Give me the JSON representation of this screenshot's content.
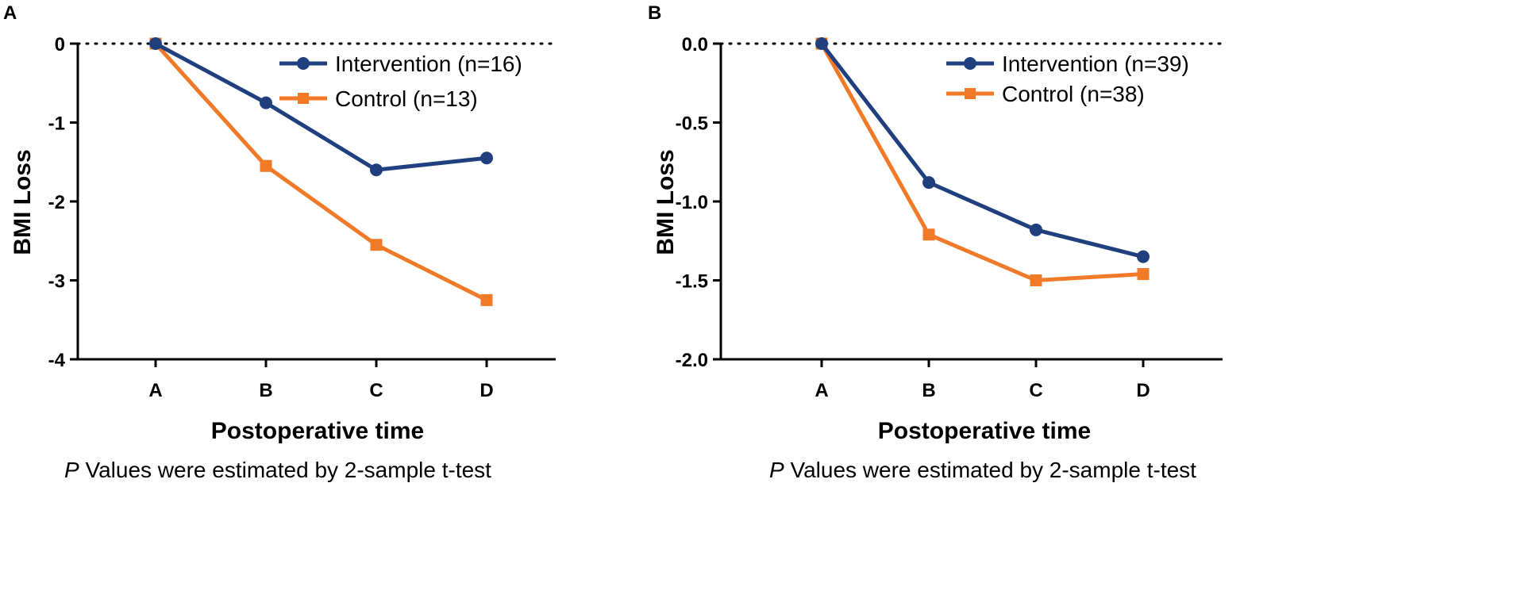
{
  "chart_data": [
    {
      "type": "line",
      "panel_label": "A",
      "title": "",
      "xlabel": "Postoperative time",
      "ylabel": "BMI Loss",
      "footnote": {
        "italic": "P",
        "text": " Values were estimated by 2-sample t-test"
      },
      "categories": [
        "A",
        "B",
        "C",
        "D"
      ],
      "ylim": [
        -4,
        0
      ],
      "yticks": [
        0,
        -1,
        -2,
        -3,
        -4
      ],
      "ytick_labels": [
        "0",
        "-1",
        "-2",
        "-3",
        "-4"
      ],
      "zero_line": "dotted",
      "legend_position": "top-right",
      "series": [
        {
          "name": "Intervention (n=16)",
          "color": "#1f3f7f",
          "marker": "circle",
          "values": [
            0,
            -0.75,
            -1.6,
            -1.45
          ]
        },
        {
          "name": "Control (n=13)",
          "color": "#f07a28",
          "marker": "square",
          "values": [
            0,
            -1.55,
            -2.55,
            -3.25
          ]
        }
      ]
    },
    {
      "type": "line",
      "panel_label": "B",
      "title": "",
      "xlabel": "Postoperative time",
      "ylabel": "BMI Loss",
      "footnote": {
        "italic": "P",
        "text": " Values were estimated by 2-sample t-test"
      },
      "categories": [
        "A",
        "B",
        "C",
        "D"
      ],
      "ylim": [
        -2,
        0
      ],
      "yticks": [
        0,
        -0.5,
        -1,
        -1.5,
        -2
      ],
      "ytick_labels": [
        "0.0",
        "-0.5",
        "-1.0",
        "-1.5",
        "-2.0"
      ],
      "zero_line": "dotted",
      "legend_position": "top-right",
      "series": [
        {
          "name": "Intervention (n=39)",
          "color": "#1f3f7f",
          "marker": "circle",
          "values": [
            0,
            -0.88,
            -1.18,
            -1.35
          ]
        },
        {
          "name": "Control (n=38)",
          "color": "#f07a28",
          "marker": "square",
          "values": [
            0,
            -1.21,
            -1.5,
            -1.46
          ]
        }
      ]
    }
  ]
}
